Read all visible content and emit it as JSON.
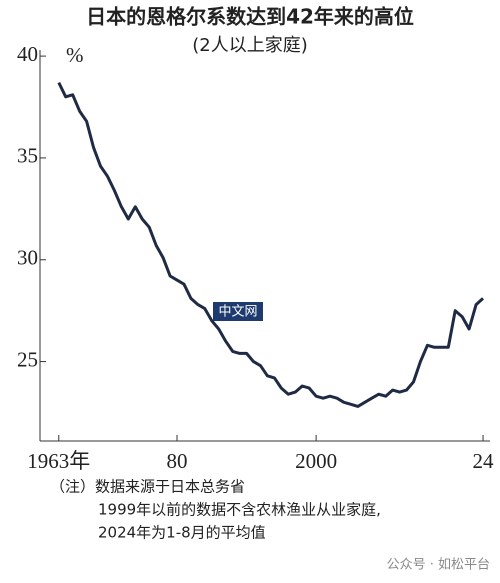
{
  "chart_data": {
    "type": "line",
    "title": "日本的恩格尔系数达到42年来的高位",
    "subtitle": "(2人以上家庭)",
    "y_unit": "%",
    "x": [
      1963,
      1964,
      1965,
      1966,
      1967,
      1968,
      1969,
      1970,
      1971,
      1972,
      1973,
      1974,
      1975,
      1976,
      1977,
      1978,
      1979,
      1980,
      1981,
      1982,
      1983,
      1984,
      1985,
      1986,
      1987,
      1988,
      1989,
      1990,
      1991,
      1992,
      1993,
      1994,
      1995,
      1996,
      1997,
      1998,
      1999,
      2000,
      2001,
      2002,
      2003,
      2004,
      2005,
      2006,
      2007,
      2008,
      2009,
      2010,
      2011,
      2012,
      2013,
      2014,
      2015,
      2016,
      2017,
      2018,
      2019,
      2020,
      2021,
      2022,
      2023,
      2024
    ],
    "series": [
      {
        "name": "恩格尔系数",
        "color": "#1f2a44",
        "values": [
          38.7,
          38.0,
          38.1,
          37.3,
          36.8,
          35.5,
          34.6,
          34.1,
          33.4,
          32.6,
          32.0,
          32.6,
          32.0,
          31.6,
          30.7,
          30.1,
          29.2,
          29.0,
          28.8,
          28.1,
          27.8,
          27.6,
          27.0,
          26.6,
          26.0,
          25.5,
          25.4,
          25.4,
          25.0,
          24.8,
          24.3,
          24.2,
          23.7,
          23.4,
          23.5,
          23.8,
          23.7,
          23.3,
          23.2,
          23.3,
          23.2,
          23.0,
          22.9,
          22.8,
          23.0,
          23.2,
          23.4,
          23.3,
          23.6,
          23.5,
          23.6,
          24.0,
          25.0,
          25.8,
          25.7,
          25.7,
          25.7,
          27.5,
          27.2,
          26.6,
          27.8,
          28.1
        ]
      }
    ],
    "xlim": [
      1960.3,
      2025
    ],
    "ylim": [
      21.1,
      40.3
    ],
    "xticks": [
      {
        "value": 1963,
        "label": "1963年"
      },
      {
        "value": 1980,
        "label": "80"
      },
      2000,
      {
        "value": 2024,
        "label": "24"
      }
    ],
    "yticks": [
      25,
      30,
      35,
      40
    ],
    "grid": false,
    "watermark": "中文网",
    "notes": [
      "（注）数据来源于日本总务省",
      "1999年以前的数据不含农林渔业从业家庭,",
      "2024年为1-8月的平均值"
    ],
    "credit": "公众号 · 如松平台"
  }
}
